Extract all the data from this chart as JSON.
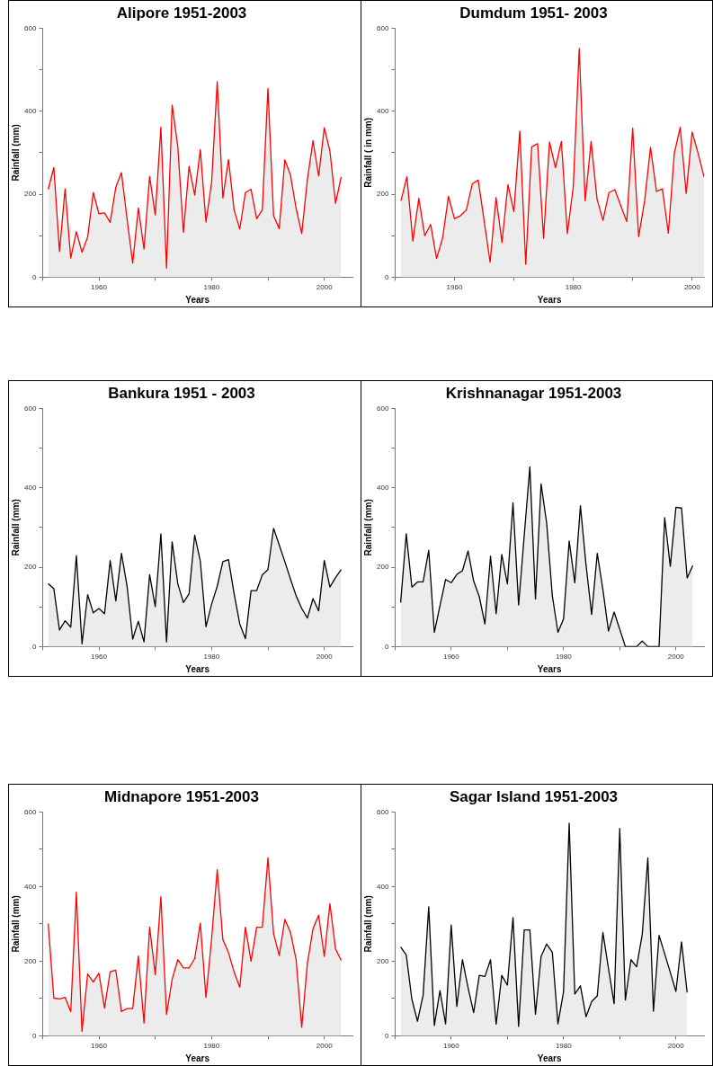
{
  "chart_data": [
    {
      "type": "area",
      "title": "Alipore 1951-2003",
      "xlabel": "Years",
      "ylabel": "Rainfall (mm)",
      "xlim": [
        1950,
        2005
      ],
      "ylim": [
        0,
        600
      ],
      "xticks": [
        {
          "value": 1950,
          "label": null
        },
        1960,
        {
          "value": 1970,
          "label": null
        },
        1980,
        {
          "value": 1990,
          "label": null
        },
        2000
      ],
      "yticks": [
        0,
        {
          "value": 100,
          "label": null
        },
        200,
        {
          "value": 300,
          "label": null
        },
        400,
        {
          "value": 500,
          "label": null
        },
        600
      ],
      "x": [
        1951,
        1952,
        1953,
        1954,
        1955,
        1956,
        1957,
        1958,
        1959,
        1960,
        1961,
        1962,
        1963,
        1964,
        1965,
        1966,
        1967,
        1968,
        1969,
        1970,
        1971,
        1972,
        1973,
        1974,
        1975,
        1976,
        1977,
        1978,
        1979,
        1980,
        1981,
        1982,
        1983,
        1984,
        1985,
        1986,
        1987,
        1988,
        1989,
        1990,
        1991,
        1992,
        1993,
        1994,
        1995,
        1996,
        1997,
        1998,
        1999,
        2000,
        2001,
        2002,
        2003
      ],
      "series": [
        {
          "color": "#ff0000",
          "values": [
            212,
            264,
            62,
            213,
            46,
            110,
            60,
            97,
            204,
            153,
            155,
            132,
            217,
            252,
            140,
            34,
            167,
            68,
            243,
            150,
            362,
            22,
            415,
            315,
            108,
            267,
            198,
            307,
            133,
            228,
            471,
            191,
            284,
            162,
            116,
            204,
            212,
            141,
            162,
            455,
            148,
            117,
            283,
            246,
            166,
            105,
            235,
            329,
            244,
            360,
            304,
            178,
            242
          ]
        }
      ]
    },
    {
      "type": "area",
      "title": "Dumdum 1951- 2003",
      "xlabel": "Years",
      "ylabel": "Rainfall ( in mm)",
      "xlim": [
        1950,
        2002
      ],
      "ylim": [
        0,
        600
      ],
      "xticks": [
        {
          "value": 1950,
          "label": null
        },
        1960,
        {
          "value": 1970,
          "label": null
        },
        1980,
        {
          "value": 1990,
          "label": null
        },
        2000
      ],
      "yticks": [
        0,
        {
          "value": 100,
          "label": null
        },
        200,
        {
          "value": 300,
          "label": null
        },
        400,
        {
          "value": 500,
          "label": null
        },
        600
      ],
      "x": [
        1951,
        1952,
        1953,
        1954,
        1955,
        1956,
        1957,
        1958,
        1959,
        1960,
        1961,
        1962,
        1963,
        1964,
        1965,
        1966,
        1967,
        1968,
        1969,
        1970,
        1971,
        1972,
        1973,
        1974,
        1975,
        1976,
        1977,
        1978,
        1979,
        1980,
        1981,
        1982,
        1983,
        1984,
        1985,
        1986,
        1987,
        1988,
        1989,
        1990,
        1991,
        1992,
        1993,
        1994,
        1995,
        1996,
        1997,
        1998,
        1999,
        2000,
        2001,
        2002
      ],
      "series": [
        {
          "color": "#ff0000",
          "values": [
            184,
            242,
            87,
            190,
            100,
            127,
            45,
            94,
            195,
            141,
            148,
            162,
            225,
            234,
            136,
            36,
            192,
            84,
            223,
            158,
            352,
            31,
            314,
            322,
            94,
            326,
            264,
            327,
            105,
            218,
            551,
            184,
            327,
            188,
            137,
            204,
            211,
            172,
            134,
            359,
            98,
            183,
            313,
            207,
            213,
            106,
            299,
            361,
            202,
            350,
            299,
            242
          ]
        }
      ]
    },
    {
      "type": "area",
      "title": "Bankura 1951 - 2003",
      "xlabel": "Years",
      "ylabel": "Rainfall (mm)",
      "xlim": [
        1950,
        2005
      ],
      "ylim": [
        0,
        600
      ],
      "xticks": [
        {
          "value": 1950,
          "label": null
        },
        1960,
        {
          "value": 1970,
          "label": null
        },
        1980,
        {
          "value": 1990,
          "label": null
        },
        2000
      ],
      "yticks": [
        0,
        {
          "value": 100,
          "label": null
        },
        200,
        {
          "value": 300,
          "label": null
        },
        400,
        {
          "value": 500,
          "label": null
        },
        600
      ],
      "x": [
        1951,
        1952,
        1953,
        1954,
        1955,
        1956,
        1957,
        1958,
        1959,
        1960,
        1961,
        1962,
        1963,
        1964,
        1965,
        1966,
        1967,
        1968,
        1969,
        1970,
        1971,
        1972,
        1973,
        1974,
        1975,
        1976,
        1977,
        1978,
        1979,
        1980,
        1981,
        1982,
        1983,
        1984,
        1985,
        1986,
        1987,
        1988,
        1989,
        1990,
        1991,
        1992,
        1993,
        1994,
        1995,
        1996,
        1997,
        1998,
        1999,
        2000,
        2001,
        2002,
        2003
      ],
      "series": [
        {
          "color": "#000000",
          "values": [
            159,
            146,
            42,
            65,
            49,
            229,
            7,
            131,
            85,
            96,
            83,
            217,
            115,
            235,
            152,
            19,
            64,
            12,
            181,
            101,
            284,
            12,
            264,
            158,
            111,
            133,
            281,
            215,
            50,
            107,
            152,
            214,
            219,
            133,
            57,
            20,
            141,
            141,
            181,
            194,
            298,
            256,
            214,
            170,
            128,
            96,
            72,
            121,
            90,
            217,
            150,
            174,
            194
          ]
        }
      ]
    },
    {
      "type": "area",
      "title": "Krishnanagar 1951-2003",
      "xlabel": "Years",
      "ylabel": "Rainfall (mm)",
      "xlim": [
        1950,
        2005
      ],
      "ylim": [
        0,
        600
      ],
      "xticks": [
        {
          "value": 1950,
          "label": null
        },
        1960,
        {
          "value": 1970,
          "label": null
        },
        1980,
        {
          "value": 1990,
          "label": null
        },
        2000
      ],
      "yticks": [
        0,
        {
          "value": 100,
          "label": null
        },
        200,
        {
          "value": 300,
          "label": null
        },
        400,
        {
          "value": 500,
          "label": null
        },
        600
      ],
      "x": [
        1951,
        1952,
        1953,
        1954,
        1955,
        1956,
        1957,
        1958,
        1959,
        1960,
        1961,
        1962,
        1963,
        1964,
        1965,
        1966,
        1967,
        1968,
        1969,
        1970,
        1971,
        1972,
        1973,
        1974,
        1975,
        1976,
        1977,
        1978,
        1979,
        1980,
        1981,
        1982,
        1983,
        1984,
        1985,
        1986,
        1987,
        1988,
        1989,
        1990,
        1991,
        1992,
        1993,
        1994,
        1995,
        1996,
        1997,
        1998,
        1999,
        2000,
        2001,
        2002,
        2003
      ],
      "series": [
        {
          "color": "#000000",
          "values": [
            111,
            284,
            150,
            163,
            163,
            243,
            36,
            103,
            169,
            161,
            182,
            191,
            241,
            165,
            126,
            57,
            228,
            83,
            232,
            158,
            362,
            105,
            280,
            453,
            120,
            410,
            310,
            128,
            36,
            70,
            266,
            161,
            355,
            206,
            81,
            235,
            144,
            39,
            87,
            44,
            0,
            0,
            0,
            14,
            0,
            0,
            0,
            325,
            202,
            351,
            349,
            173,
            204
          ]
        }
      ]
    },
    {
      "type": "area",
      "title": "Midnapore 1951-2003",
      "xlabel": "Years",
      "ylabel": "Rainfall (mm)",
      "xlim": [
        1950,
        2005
      ],
      "ylim": [
        0,
        600
      ],
      "xticks": [
        {
          "value": 1950,
          "label": null
        },
        1960,
        {
          "value": 1970,
          "label": null
        },
        1980,
        {
          "value": 1990,
          "label": null
        },
        2000
      ],
      "yticks": [
        0,
        {
          "value": 100,
          "label": null
        },
        200,
        {
          "value": 300,
          "label": null
        },
        400,
        {
          "value": 500,
          "label": null
        },
        600
      ],
      "x": [
        1951,
        1952,
        1953,
        1954,
        1955,
        1956,
        1957,
        1958,
        1959,
        1960,
        1961,
        1962,
        1963,
        1964,
        1965,
        1966,
        1967,
        1968,
        1969,
        1970,
        1971,
        1972,
        1973,
        1974,
        1975,
        1976,
        1977,
        1978,
        1979,
        1980,
        1981,
        1982,
        1983,
        1984,
        1985,
        1986,
        1987,
        1988,
        1989,
        1990,
        1991,
        1992,
        1993,
        1994,
        1995,
        1996,
        1997,
        1998,
        1999,
        2000,
        2001,
        2002,
        2003
      ],
      "series": [
        {
          "color": "#ff0000",
          "values": [
            301,
            101,
            99,
            103,
            65,
            385,
            12,
            166,
            144,
            168,
            74,
            172,
            176,
            65,
            73,
            73,
            214,
            34,
            291,
            164,
            373,
            57,
            152,
            204,
            182,
            182,
            207,
            302,
            103,
            260,
            445,
            258,
            223,
            171,
            130,
            291,
            200,
            291,
            291,
            477,
            274,
            215,
            312,
            277,
            204,
            23,
            194,
            287,
            323,
            213,
            354,
            233,
            202
          ]
        }
      ]
    },
    {
      "type": "area",
      "title": "Sagar Island 1951-2003",
      "xlabel": "Years",
      "ylabel": "Rainfall (mm)",
      "xlim": [
        1950,
        2005
      ],
      "ylim": [
        0,
        600
      ],
      "xticks": [
        {
          "value": 1950,
          "label": null
        },
        1960,
        {
          "value": 1970,
          "label": null
        },
        1980,
        {
          "value": 1990,
          "label": null
        },
        2000
      ],
      "yticks": [
        0,
        {
          "value": 100,
          "label": null
        },
        200,
        {
          "value": 300,
          "label": null
        },
        400,
        {
          "value": 500,
          "label": null
        },
        600
      ],
      "x": [
        1951,
        1952,
        1953,
        1954,
        1955,
        1956,
        1957,
        1958,
        1959,
        1960,
        1961,
        1962,
        1963,
        1964,
        1965,
        1966,
        1967,
        1968,
        1969,
        1970,
        1971,
        1972,
        1973,
        1974,
        1975,
        1976,
        1977,
        1978,
        1979,
        1980,
        1981,
        1982,
        1983,
        1984,
        1985,
        1986,
        1987,
        1988,
        1989,
        1990,
        1991,
        1992,
        1993,
        1994,
        1995,
        1996,
        1997,
        1998,
        1999,
        2000,
        2001,
        2002
      ],
      "series": [
        {
          "color": "#000000",
          "values": [
            238,
            217,
            98,
            39,
            109,
            346,
            28,
            121,
            32,
            297,
            79,
            204,
            129,
            62,
            162,
            159,
            204,
            31,
            162,
            136,
            317,
            25,
            284,
            284,
            58,
            213,
            246,
            224,
            32,
            119,
            570,
            112,
            134,
            51,
            92,
            107,
            277,
            180,
            86,
            556,
            96,
            204,
            185,
            271,
            477,
            66,
            269,
            220,
            170,
            119,
            252,
            116
          ]
        }
      ]
    }
  ]
}
